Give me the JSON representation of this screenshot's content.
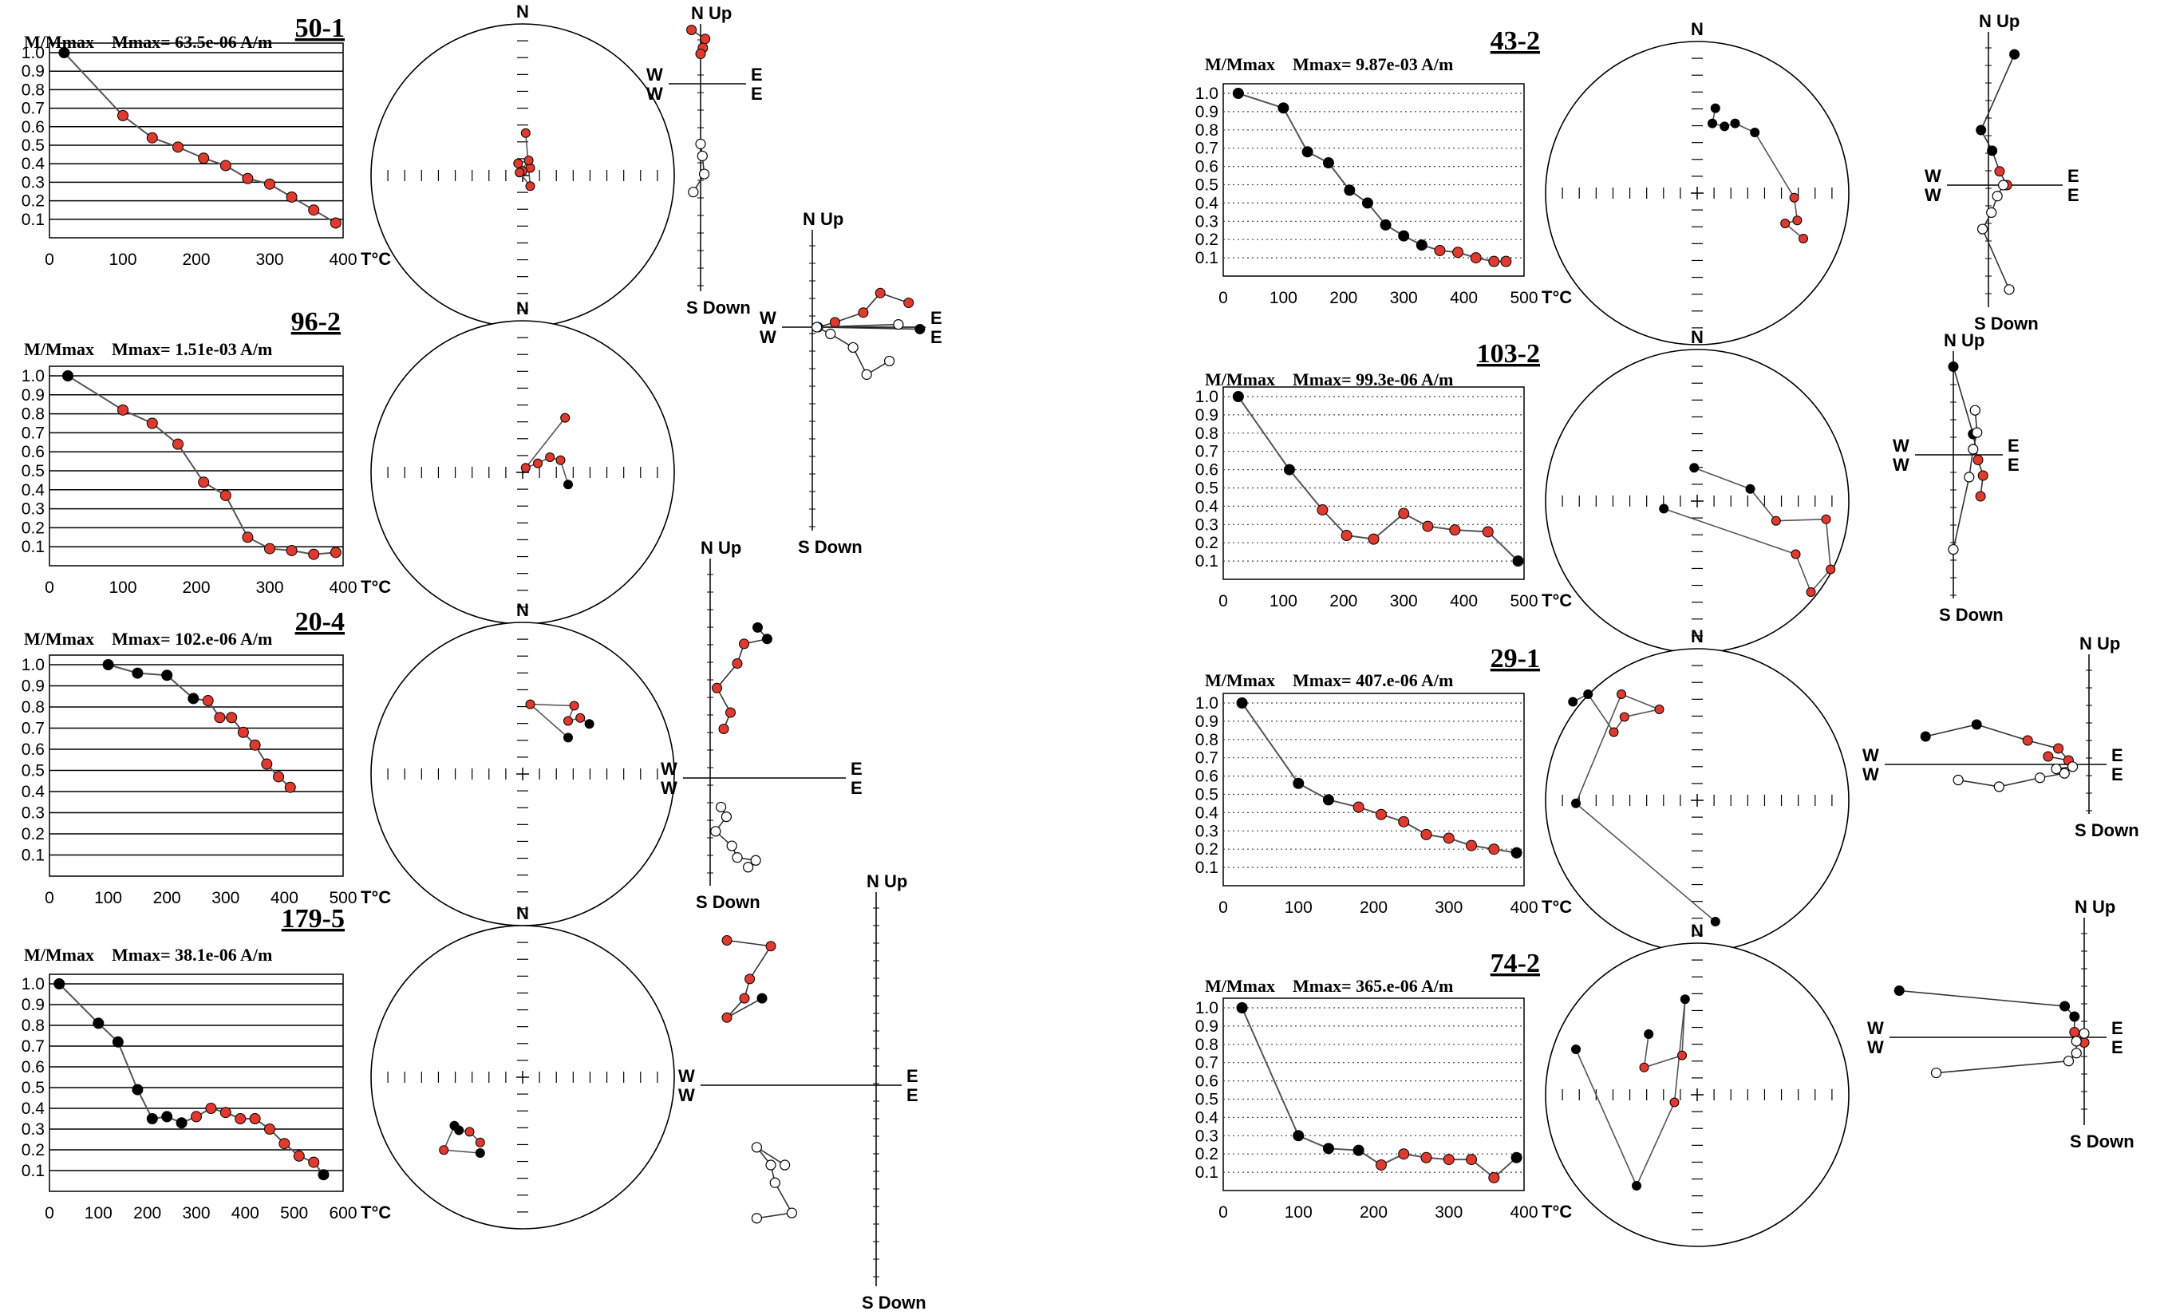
{
  "figure": {
    "y_axis_label": "M/Mmax",
    "temp_unit": "T°C",
    "north_label": "N",
    "zijderveld_labels": {
      "up": "N Up",
      "down": "S Down",
      "east": "E",
      "west": "W"
    }
  },
  "colors": {
    "high_temp": "#e03a2f",
    "low_temp": "#000000",
    "pale": "#f0a8a0",
    "line": "#555555",
    "upper_hemi": "#ffffff"
  },
  "chart_data": [
    {
      "type": "line",
      "specimen": "50-1",
      "mmax_text": "Mmax= 63.5e-06  A/m",
      "xlabel": "T°C",
      "ylabel": "M/Mmax",
      "xlim": [
        0,
        400
      ],
      "xticks": [
        0,
        100,
        200,
        300,
        400
      ],
      "ylim": [
        0,
        1.0
      ],
      "yticks": [
        0.1,
        0.2,
        0.3,
        0.4,
        0.5,
        0.6,
        0.7,
        0.8,
        0.9,
        1.0
      ],
      "grid": "horizontal-solid",
      "x": [
        20,
        100,
        140,
        175,
        210,
        240,
        270,
        300,
        330,
        360,
        390
      ],
      "y": [
        1.0,
        0.66,
        0.54,
        0.49,
        0.43,
        0.39,
        0.32,
        0.29,
        0.22,
        0.15,
        0.08
      ],
      "point_colors": [
        "k",
        "r",
        "r",
        "r",
        "r",
        "r",
        "r",
        "r",
        "r",
        "r",
        "r"
      ]
    },
    {
      "type": "line",
      "specimen": "96-2",
      "mmax_text": "Mmax= 1.51e-03  A/m",
      "xlabel": "T°C",
      "ylabel": "M/Mmax",
      "xlim": [
        0,
        400
      ],
      "xticks": [
        0,
        100,
        200,
        300,
        400
      ],
      "ylim": [
        0,
        1.0
      ],
      "yticks": [
        0.1,
        0.2,
        0.3,
        0.4,
        0.5,
        0.6,
        0.7,
        0.8,
        0.9,
        1.0
      ],
      "grid": "horizontal-solid",
      "x": [
        25,
        100,
        140,
        175,
        210,
        240,
        270,
        300,
        330,
        360,
        390
      ],
      "y": [
        1.0,
        0.82,
        0.75,
        0.64,
        0.44,
        0.37,
        0.15,
        0.09,
        0.08,
        0.06,
        0.07
      ],
      "point_colors": [
        "k",
        "r",
        "r",
        "r",
        "r",
        "r",
        "r",
        "r",
        "r",
        "r",
        "r"
      ]
    },
    {
      "type": "line",
      "specimen": "20-4",
      "mmax_text": "Mmax= 102.e-06  A/m",
      "xlabel": "T°C",
      "ylabel": "M/Mmax",
      "xlim": [
        0,
        500
      ],
      "xticks": [
        0,
        100,
        200,
        300,
        400,
        500
      ],
      "ylim": [
        0,
        1.0
      ],
      "yticks": [
        0.1,
        0.2,
        0.3,
        0.4,
        0.5,
        0.6,
        0.7,
        0.8,
        0.9,
        1.0
      ],
      "grid": "horizontal-solid",
      "x": [
        100,
        150,
        200,
        245,
        270,
        290,
        310,
        330,
        350,
        370,
        390,
        410
      ],
      "y": [
        1.0,
        0.96,
        0.95,
        0.84,
        0.83,
        0.75,
        0.75,
        0.68,
        0.62,
        0.53,
        0.47,
        0.42
      ],
      "point_colors": [
        "k",
        "k",
        "k",
        "k",
        "r",
        "r",
        "r",
        "r",
        "r",
        "r",
        "r",
        "r"
      ]
    },
    {
      "type": "line",
      "specimen": "179-5",
      "mmax_text": "Mmax= 38.1e-06  A/m",
      "xlabel": "T°C",
      "ylabel": "M/Mmax",
      "xlim": [
        0,
        600
      ],
      "xticks": [
        0,
        100,
        200,
        300,
        400,
        500,
        600
      ],
      "ylim": [
        0,
        1.0
      ],
      "yticks": [
        0.1,
        0.2,
        0.3,
        0.4,
        0.5,
        0.6,
        0.7,
        0.8,
        0.9,
        1.0
      ],
      "grid": "horizontal-solid",
      "x": [
        20,
        100,
        140,
        180,
        210,
        240,
        270,
        300,
        330,
        360,
        390,
        420,
        450,
        480,
        510,
        540,
        560
      ],
      "y": [
        1.0,
        0.81,
        0.72,
        0.49,
        0.35,
        0.36,
        0.33,
        0.36,
        0.4,
        0.38,
        0.35,
        0.35,
        0.3,
        0.23,
        0.17,
        0.14,
        0.08
      ],
      "point_colors": [
        "k",
        "k",
        "k",
        "k",
        "k",
        "k",
        "k",
        "r",
        "r",
        "r",
        "r",
        "r",
        "r",
        "r",
        "r",
        "r",
        "k"
      ]
    },
    {
      "type": "line",
      "specimen": "43-2",
      "mmax_text": "Mmax= 9.87e-03  A/m",
      "xlabel": "T°C",
      "ylabel": "M/Mmax",
      "xlim": [
        0,
        500
      ],
      "xticks": [
        0,
        100,
        200,
        300,
        400,
        500
      ],
      "ylim": [
        0,
        1.0
      ],
      "yticks": [
        0.1,
        0.2,
        0.3,
        0.4,
        0.5,
        0.6,
        0.7,
        0.8,
        0.9,
        1.0
      ],
      "grid": "horizontal-dotted",
      "x": [
        25,
        100,
        140,
        175,
        210,
        240,
        270,
        300,
        330,
        360,
        390,
        420,
        450,
        470
      ],
      "y": [
        1.0,
        0.92,
        0.68,
        0.62,
        0.47,
        0.4,
        0.28,
        0.22,
        0.17,
        0.14,
        0.13,
        0.1,
        0.08,
        0.08
      ],
      "point_colors": [
        "k",
        "k",
        "k",
        "k",
        "k",
        "k",
        "k",
        "k",
        "k",
        "r",
        "r",
        "r",
        "r",
        "r"
      ]
    },
    {
      "type": "line",
      "specimen": "103-2",
      "mmax_text": "Mmax= 99.3e-06  A/m",
      "xlabel": "T°C",
      "ylabel": "M/Mmax",
      "xlim": [
        0,
        500
      ],
      "xticks": [
        0,
        100,
        200,
        300,
        400,
        500
      ],
      "ylim": [
        0,
        1.0
      ],
      "yticks": [
        0.1,
        0.2,
        0.3,
        0.4,
        0.5,
        0.6,
        0.7,
        0.8,
        0.9,
        1.0
      ],
      "grid": "horizontal-dotted",
      "x": [
        25,
        110,
        165,
        205,
        250,
        300,
        340,
        385,
        440,
        490
      ],
      "y": [
        1.0,
        0.6,
        0.38,
        0.24,
        0.22,
        0.36,
        0.29,
        0.27,
        0.26,
        0.1
      ],
      "point_colors": [
        "k",
        "k",
        "r",
        "r",
        "r",
        "r",
        "r",
        "r",
        "r",
        "k"
      ]
    },
    {
      "type": "line",
      "specimen": "29-1",
      "mmax_text": "Mmax= 407.e-06  A/m",
      "xlabel": "T°C",
      "ylabel": "M/Mmax",
      "xlim": [
        0,
        400
      ],
      "xticks": [
        0,
        100,
        200,
        300,
        400
      ],
      "ylim": [
        0,
        1.0
      ],
      "yticks": [
        0.1,
        0.2,
        0.3,
        0.4,
        0.5,
        0.6,
        0.7,
        0.8,
        0.9,
        1.0
      ],
      "grid": "horizontal-dotted",
      "x": [
        25,
        100,
        140,
        180,
        210,
        240,
        270,
        300,
        330,
        360,
        390
      ],
      "y": [
        1.0,
        0.56,
        0.47,
        0.43,
        0.39,
        0.35,
        0.28,
        0.26,
        0.22,
        0.2,
        0.18
      ],
      "point_colors": [
        "k",
        "k",
        "k",
        "r",
        "r",
        "r",
        "r",
        "r",
        "r",
        "r",
        "k"
      ]
    },
    {
      "type": "line",
      "specimen": "74-2",
      "mmax_text": "Mmax= 365.e-06  A/m",
      "xlabel": "T°C",
      "ylabel": "M/Mmax",
      "xlim": [
        0,
        400
      ],
      "xticks": [
        0,
        100,
        200,
        300,
        400
      ],
      "ylim": [
        0,
        1.0
      ],
      "yticks": [
        0.1,
        0.2,
        0.3,
        0.4,
        0.5,
        0.6,
        0.7,
        0.8,
        0.9,
        1.0
      ],
      "grid": "horizontal-dotted",
      "x": [
        25,
        100,
        140,
        180,
        210,
        240,
        270,
        300,
        330,
        360,
        390
      ],
      "y": [
        1.0,
        0.3,
        0.23,
        0.22,
        0.14,
        0.2,
        0.18,
        0.17,
        0.17,
        0.07,
        0.18
      ],
      "point_colors": [
        "k",
        "k",
        "k",
        "k",
        "r",
        "r",
        "r",
        "r",
        "r",
        "r",
        "k"
      ]
    }
  ]
}
